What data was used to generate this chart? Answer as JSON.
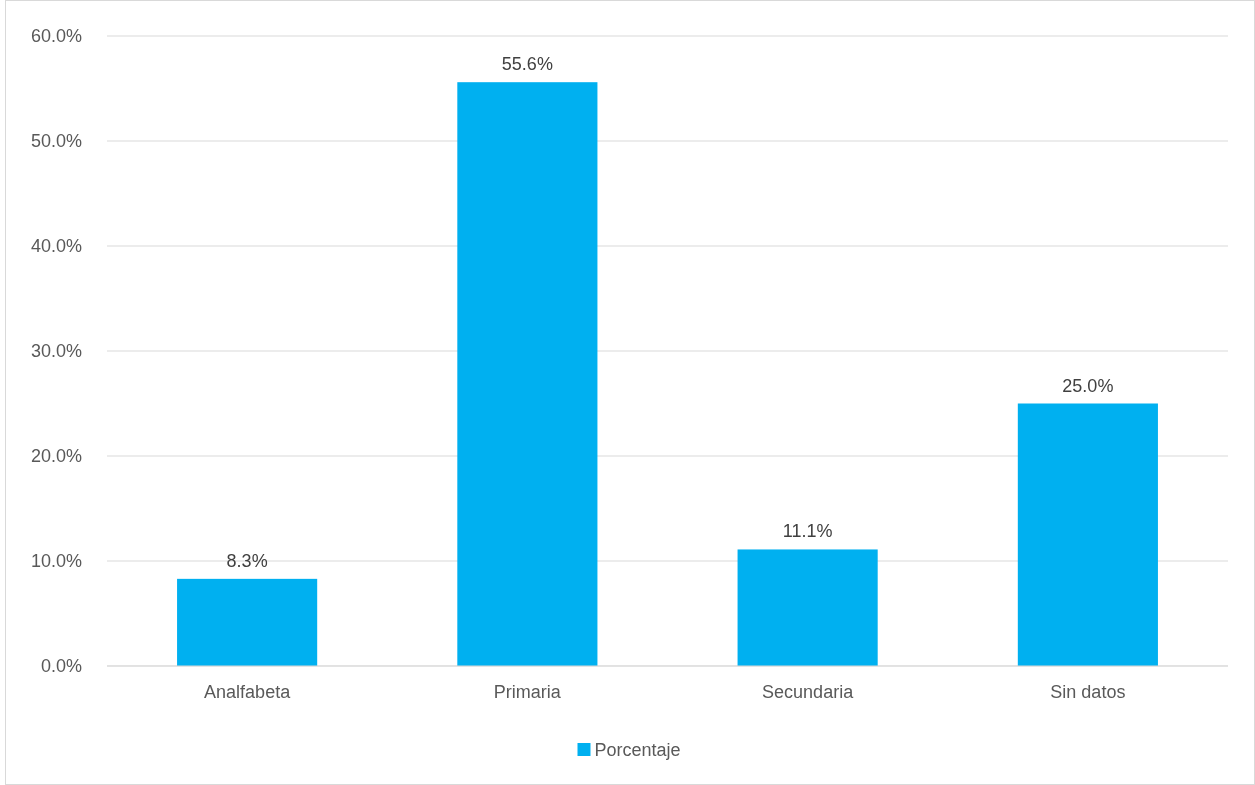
{
  "chart_data": {
    "type": "bar",
    "categories": [
      "Analfabeta",
      "Primaria",
      "Secundaria",
      "Sin datos"
    ],
    "series": [
      {
        "name": "Porcentaje",
        "color": "#00b0f0",
        "values": [
          8.3,
          55.6,
          11.1,
          25.0
        ],
        "value_labels": [
          "8.3%",
          "55.6%",
          "11.1%",
          "25.0%"
        ]
      }
    ],
    "ylim": [
      0,
      60
    ],
    "yticks": [
      {
        "value": 0,
        "label": "0.0%"
      },
      {
        "value": 10,
        "label": "10.0%"
      },
      {
        "value": 20,
        "label": "20.0%"
      },
      {
        "value": 30,
        "label": "30.0%"
      },
      {
        "value": 40,
        "label": "40.0%"
      },
      {
        "value": 50,
        "label": "50.0%"
      },
      {
        "value": 60,
        "label": "60.0%"
      }
    ],
    "grid": "y",
    "legend": "bottom"
  }
}
